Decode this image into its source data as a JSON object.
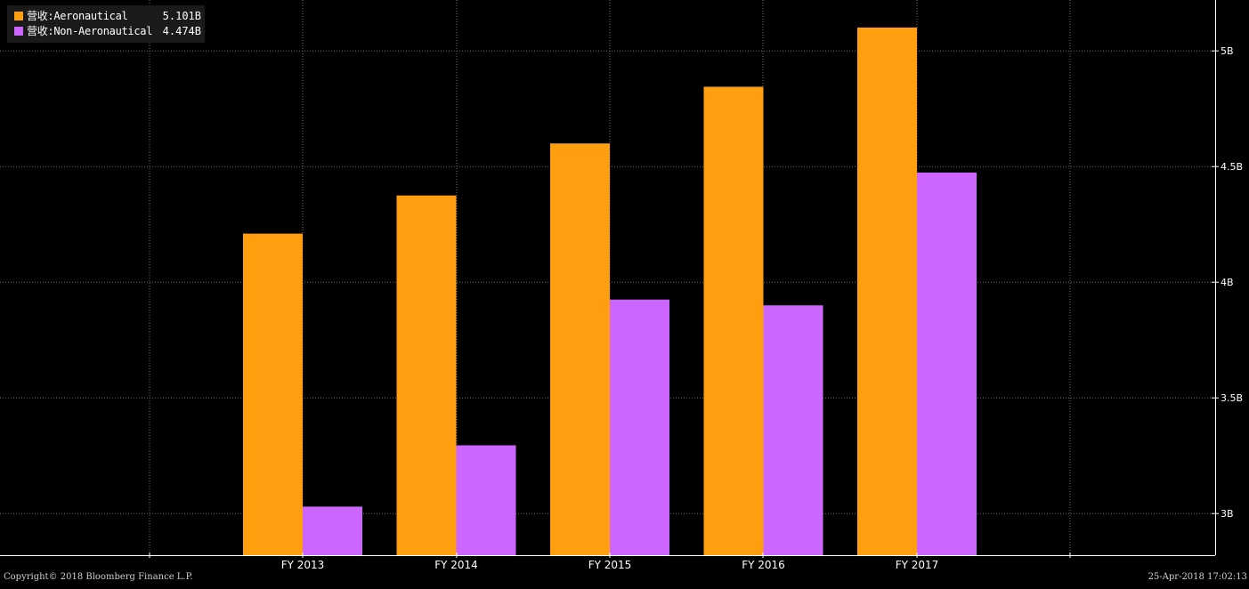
{
  "chart_data": {
    "type": "bar",
    "categories": [
      "FY 2013",
      "FY 2014",
      "FY 2015",
      "FY 2016",
      "FY 2017"
    ],
    "series": [
      {
        "name": "营收:Aeronautical",
        "latest_label": "5.101B",
        "color": "#ff9f10",
        "values": [
          4.21,
          4.375,
          4.6,
          4.845,
          5.101
        ]
      },
      {
        "name": "营收:Non-Aeronautical",
        "latest_label": "4.474B",
        "color": "#cc66ff",
        "values": [
          3.03,
          3.295,
          3.925,
          3.9,
          4.474
        ]
      }
    ],
    "yticks": [
      {
        "value": 3.0,
        "label": "3B"
      },
      {
        "value": 3.5,
        "label": "3.5B"
      },
      {
        "value": 4.0,
        "label": "4B"
      },
      {
        "value": 4.5,
        "label": "4.5B"
      },
      {
        "value": 5.0,
        "label": "5B"
      }
    ],
    "ylim": [
      2.82,
      5.22
    ],
    "grid": true,
    "legend_position": "top-left",
    "axis_side": "right"
  },
  "footer": {
    "copyright": "Copyright© 2018 Bloomberg Finance L.P.",
    "timestamp": "25-Apr-2018 17:02:13"
  }
}
